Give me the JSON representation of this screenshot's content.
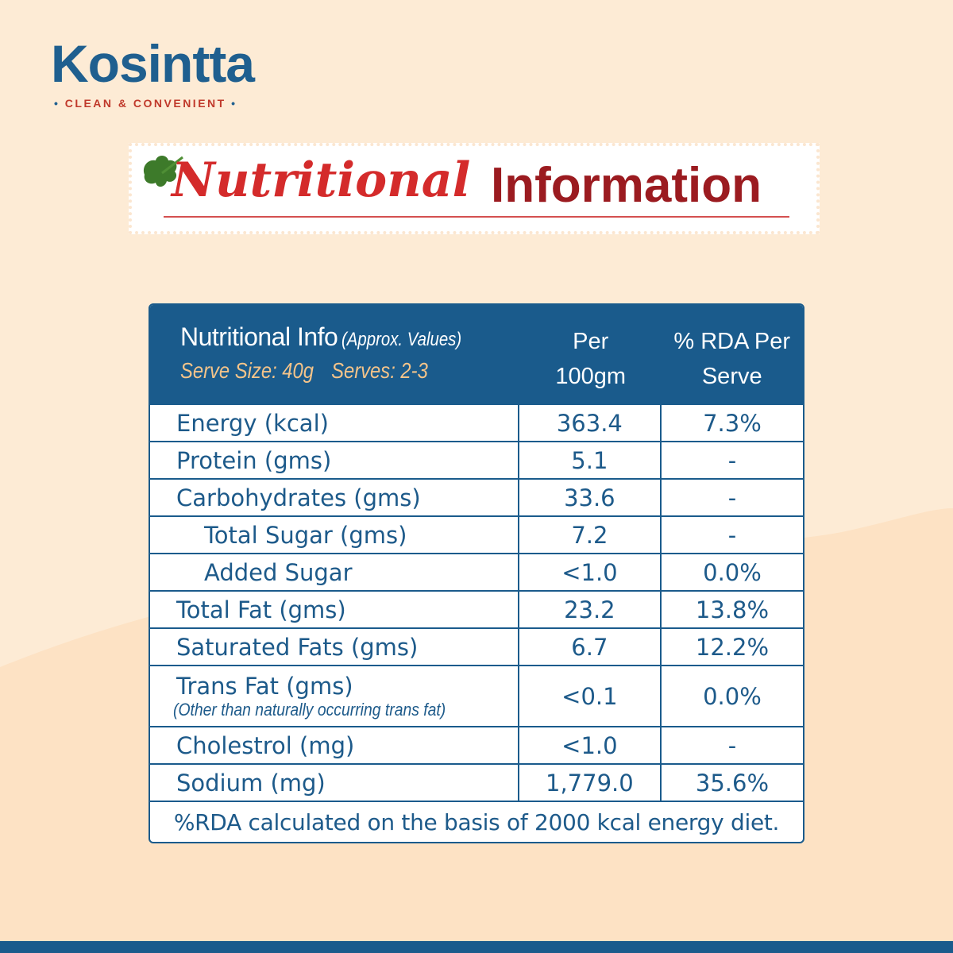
{
  "brand": {
    "name": "Kosintta",
    "tagline": "CLEAN & CONVENIENT"
  },
  "banner": {
    "word1": "Nutritional",
    "word2": "Information"
  },
  "colors": {
    "primary": "#1a5b8c",
    "accent_red": "#d42b2b",
    "dark_red": "#9b1b20",
    "serve_text": "#f4c48a",
    "background": "#fdebd5"
  },
  "table": {
    "header": {
      "title": "Nutritional Info",
      "approx": "(Approx. Values)",
      "serve_size": "Serve Size: 40g",
      "serves": "Serves: 2-3",
      "col2_line1": "Per",
      "col2_line2": "100gm",
      "col3_line1": "% RDA Per",
      "col3_line2": "Serve"
    },
    "rows": [
      {
        "name": "Energy (kcal)",
        "per100": "363.4",
        "rda": "7.3%"
      },
      {
        "name": "Protein (gms)",
        "per100": "5.1",
        "rda": "-"
      },
      {
        "name": "Carbohydrates (gms)",
        "per100": "33.6",
        "rda": "-"
      },
      {
        "name": "Total Sugar (gms)",
        "per100": "7.2",
        "rda": "-"
      },
      {
        "name": "Added Sugar",
        "per100": "<1.0",
        "rda": "0.0%"
      },
      {
        "name": "Total Fat (gms)",
        "per100": "23.2",
        "rda": "13.8%"
      },
      {
        "name": "Saturated Fats (gms)",
        "per100": "6.7",
        "rda": "12.2%"
      },
      {
        "name": "Trans Fat (gms)",
        "note": "(Other than naturally occurring trans fat)",
        "per100": "<0.1",
        "rda": "0.0%"
      },
      {
        "name": "Cholestrol (mg)",
        "per100": "<1.0",
        "rda": "-"
      },
      {
        "name": "Sodium (mg)",
        "per100": "1,779.0",
        "rda": "35.6%"
      }
    ],
    "footnote": "%RDA calculated on the basis of 2000 kcal energy diet."
  }
}
